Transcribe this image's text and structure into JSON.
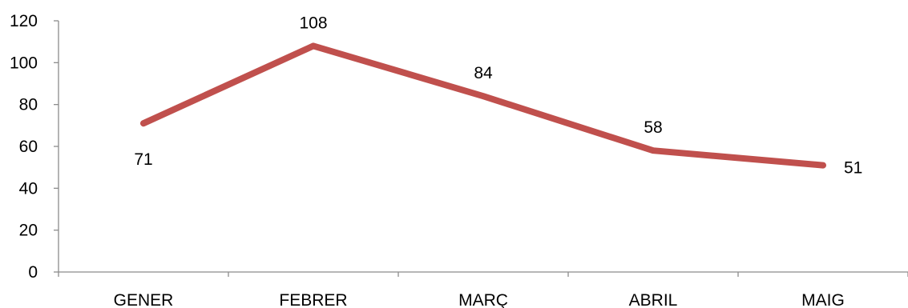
{
  "chart_data": {
    "type": "line",
    "title": "",
    "xlabel": "",
    "ylabel": "",
    "categories": [
      "GENER",
      "FEBRER",
      "MARÇ",
      "ABRIL",
      "MAIG"
    ],
    "series": [
      {
        "values": [
          71,
          108,
          84,
          58,
          51
        ],
        "color": "#C0504D"
      }
    ],
    "ylim": [
      0,
      120
    ],
    "yticks": [
      0,
      20,
      40,
      60,
      80,
      100,
      120
    ],
    "ytick_labels": [
      "0",
      "20",
      "40",
      "60",
      "80",
      "100",
      "120"
    ],
    "data_labels": [
      "71",
      "108",
      "84",
      "58",
      "51"
    ],
    "data_label_positions": [
      "below",
      "above",
      "above",
      "above",
      "right"
    ],
    "grid": false,
    "legend": "none"
  }
}
